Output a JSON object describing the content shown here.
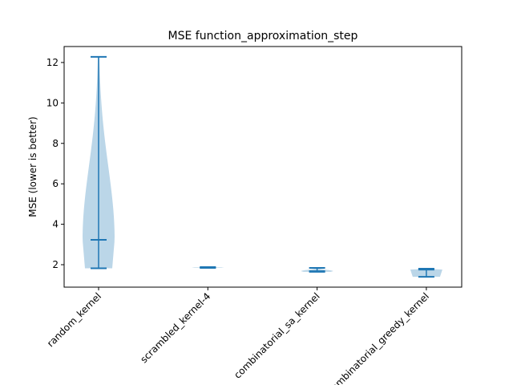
{
  "chart_data": {
    "type": "violin",
    "title": "MSE function_approximation_step",
    "y_label": "MSE (lower is better)",
    "categories": [
      "random_kernel",
      "scrambled_kernel-4",
      "combinatorial_sa_kernel",
      "combinatorial_greedy_kernel"
    ],
    "min": [
      1.82,
      1.84,
      1.65,
      1.4
    ],
    "median": [
      3.23,
      1.86,
      1.68,
      1.76
    ],
    "max": [
      12.28,
      1.88,
      1.84,
      1.8
    ],
    "color": "#1f77b4",
    "ylim": [
      0.89,
      12.79
    ],
    "yticks": [
      2,
      4,
      6,
      8,
      10,
      12
    ]
  }
}
